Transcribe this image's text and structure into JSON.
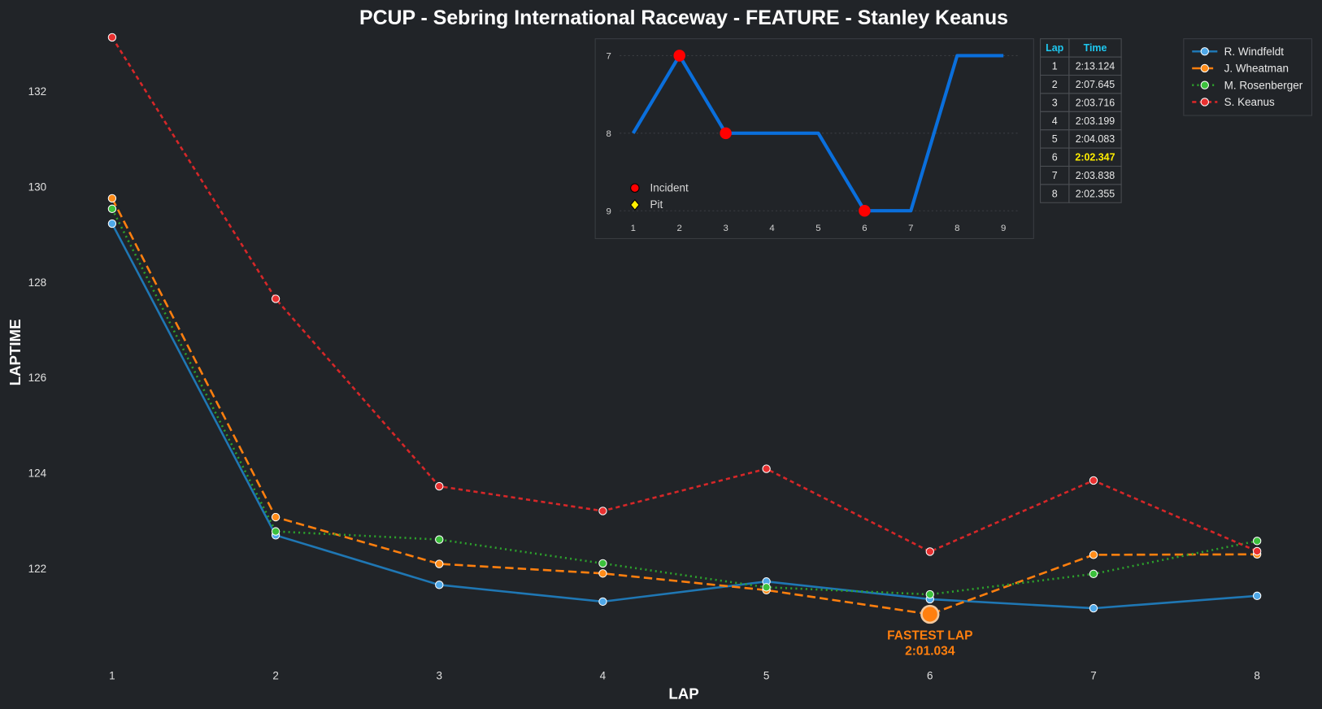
{
  "chart_data": [
    {
      "type": "line",
      "title": "PCUP - Sebring International Raceway - FEATURE - Stanley Keanus",
      "xlabel": "LAP",
      "ylabel": "LAPTIME",
      "x": [
        1,
        2,
        3,
        4,
        5,
        6,
        7,
        8
      ],
      "xticks": [
        "1",
        "2",
        "3",
        "4",
        "5",
        "6",
        "7",
        "8"
      ],
      "yticks": [
        "122",
        "124",
        "126",
        "128",
        "130",
        "132"
      ],
      "ytick_values": [
        122,
        124,
        126,
        128,
        130,
        132
      ],
      "xlim": [
        0.65,
        8.35
      ],
      "ylim": [
        119.95,
        133.2
      ],
      "grid": false,
      "legend_position": "top-right",
      "series": [
        {
          "name": "R. Windfeldt",
          "color": "#1f77b4",
          "marker_color": "#4fa8e8",
          "dash": "solid",
          "values": [
            129.22,
            122.69,
            121.65,
            121.3,
            121.72,
            121.35,
            121.16,
            121.42
          ]
        },
        {
          "name": "J. Wheatman",
          "color": "#ff7f0e",
          "marker_color": "#ff8c1a",
          "dash": "dashed",
          "values": [
            129.75,
            123.07,
            122.09,
            121.89,
            121.54,
            121.034,
            122.28,
            122.29
          ]
        },
        {
          "name": "M. Rosenberger",
          "color": "#2ca02c",
          "marker_color": "#3cc03c",
          "dash": "dotted",
          "values": [
            129.53,
            122.77,
            122.6,
            122.1,
            121.6,
            121.45,
            121.88,
            122.57
          ]
        },
        {
          "name": "S. Keanus",
          "color": "#d62728",
          "marker_color": "#e83030",
          "dash": "short-dashed",
          "values": [
            133.124,
            127.645,
            123.716,
            123.199,
            124.083,
            122.347,
            123.838,
            122.355
          ]
        }
      ],
      "annotation": {
        "label": "FASTEST LAP",
        "value": "2:01.034",
        "lap": 6,
        "laptime": 121.034,
        "color": "#ff7f0e"
      }
    },
    {
      "type": "line",
      "title": "",
      "x": [
        1,
        2,
        3,
        4,
        5,
        6,
        7,
        8,
        9
      ],
      "values": [
        8,
        7,
        8,
        8,
        8,
        9,
        9,
        7,
        7
      ],
      "xticks": [
        "1",
        "2",
        "3",
        "4",
        "5",
        "6",
        "7",
        "8",
        "9"
      ],
      "yticks": [
        "7",
        "8",
        "9"
      ],
      "ytick_values": [
        7,
        8,
        9
      ],
      "y_inverted": true,
      "color": "#0a6fdc",
      "incidents": [
        2,
        3,
        6
      ],
      "pits": [],
      "legend": {
        "incident": "Incident",
        "pit": "Pit"
      }
    },
    {
      "type": "table",
      "headers": [
        "Lap",
        "Time"
      ],
      "rows": [
        [
          "1",
          "2:13.124"
        ],
        [
          "2",
          "2:07.645"
        ],
        [
          "3",
          "2:03.716"
        ],
        [
          "4",
          "2:03.199"
        ],
        [
          "5",
          "2:04.083"
        ],
        [
          "6",
          "2:02.347"
        ],
        [
          "7",
          "2:03.838"
        ],
        [
          "8",
          "2:02.355"
        ]
      ],
      "highlight_row": 5
    }
  ]
}
